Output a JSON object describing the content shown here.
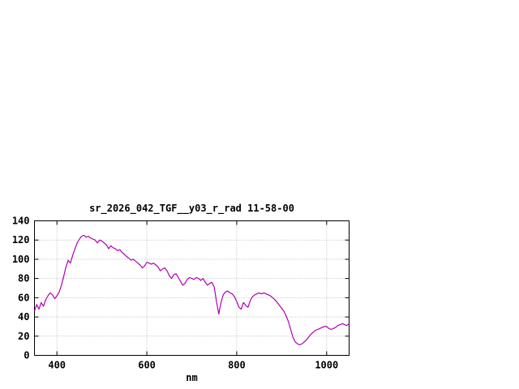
{
  "window": {
    "background": "#ffffff"
  },
  "chart_data": {
    "type": "line",
    "title": "sr_2026_042_TGF__y03_r_rad 11-58-00",
    "xlabel": "nm",
    "ylabel": "",
    "xlim": [
      350,
      1050
    ],
    "ylim": [
      0,
      140
    ],
    "xticks": [
      400,
      600,
      800,
      1000
    ],
    "yticks": [
      0,
      20,
      40,
      60,
      80,
      100,
      120,
      140
    ],
    "grid": true,
    "legend_position": "none",
    "line_color": "#b000b0",
    "axis_color": "#000000",
    "grid_color": "#b4b4b4",
    "series": [
      {
        "name": "sr_2026_042_TGF__y03_r_rad 11-58-00",
        "color": "#b000b0",
        "points": [
          [
            350,
            46
          ],
          [
            355,
            53
          ],
          [
            360,
            48
          ],
          [
            365,
            55
          ],
          [
            370,
            51
          ],
          [
            375,
            58
          ],
          [
            380,
            62
          ],
          [
            385,
            65
          ],
          [
            390,
            63
          ],
          [
            395,
            59
          ],
          [
            400,
            62
          ],
          [
            405,
            66
          ],
          [
            410,
            73
          ],
          [
            415,
            82
          ],
          [
            420,
            92
          ],
          [
            425,
            99
          ],
          [
            430,
            96
          ],
          [
            435,
            104
          ],
          [
            440,
            111
          ],
          [
            445,
            117
          ],
          [
            450,
            121
          ],
          [
            455,
            124
          ],
          [
            460,
            125
          ],
          [
            465,
            123
          ],
          [
            470,
            124
          ],
          [
            475,
            122
          ],
          [
            480,
            121
          ],
          [
            485,
            120
          ],
          [
            490,
            117
          ],
          [
            495,
            120
          ],
          [
            500,
            119
          ],
          [
            505,
            117
          ],
          [
            510,
            115
          ],
          [
            515,
            111
          ],
          [
            520,
            114
          ],
          [
            525,
            112
          ],
          [
            530,
            111
          ],
          [
            535,
            109
          ],
          [
            540,
            110
          ],
          [
            545,
            107
          ],
          [
            550,
            105
          ],
          [
            555,
            103
          ],
          [
            560,
            101
          ],
          [
            565,
            99
          ],
          [
            570,
            100
          ],
          [
            575,
            98
          ],
          [
            580,
            96
          ],
          [
            585,
            94
          ],
          [
            590,
            91
          ],
          [
            595,
            93
          ],
          [
            600,
            97
          ],
          [
            605,
            96
          ],
          [
            610,
            95
          ],
          [
            615,
            96
          ],
          [
            620,
            94
          ],
          [
            625,
            92
          ],
          [
            630,
            88
          ],
          [
            635,
            90
          ],
          [
            640,
            91
          ],
          [
            645,
            88
          ],
          [
            650,
            83
          ],
          [
            655,
            80
          ],
          [
            660,
            84
          ],
          [
            665,
            85
          ],
          [
            670,
            81
          ],
          [
            675,
            77
          ],
          [
            680,
            73
          ],
          [
            685,
            75
          ],
          [
            690,
            79
          ],
          [
            695,
            81
          ],
          [
            700,
            80
          ],
          [
            705,
            79
          ],
          [
            710,
            81
          ],
          [
            715,
            80
          ],
          [
            720,
            78
          ],
          [
            725,
            80
          ],
          [
            730,
            76
          ],
          [
            735,
            73
          ],
          [
            740,
            75
          ],
          [
            745,
            76
          ],
          [
            750,
            71
          ],
          [
            755,
            56
          ],
          [
            760,
            43
          ],
          [
            765,
            55
          ],
          [
            770,
            63
          ],
          [
            775,
            66
          ],
          [
            780,
            67
          ],
          [
            785,
            65
          ],
          [
            790,
            64
          ],
          [
            795,
            61
          ],
          [
            800,
            56
          ],
          [
            805,
            50
          ],
          [
            810,
            48
          ],
          [
            815,
            55
          ],
          [
            820,
            52
          ],
          [
            825,
            50
          ],
          [
            830,
            57
          ],
          [
            835,
            61
          ],
          [
            840,
            63
          ],
          [
            845,
            64
          ],
          [
            850,
            65
          ],
          [
            855,
            64
          ],
          [
            860,
            65
          ],
          [
            865,
            64
          ],
          [
            870,
            63
          ],
          [
            875,
            62
          ],
          [
            880,
            60
          ],
          [
            885,
            58
          ],
          [
            890,
            55
          ],
          [
            895,
            52
          ],
          [
            900,
            49
          ],
          [
            905,
            46
          ],
          [
            910,
            41
          ],
          [
            915,
            35
          ],
          [
            920,
            27
          ],
          [
            925,
            19
          ],
          [
            930,
            14
          ],
          [
            935,
            12
          ],
          [
            940,
            11
          ],
          [
            945,
            12
          ],
          [
            950,
            14
          ],
          [
            955,
            16
          ],
          [
            960,
            19
          ],
          [
            965,
            22
          ],
          [
            970,
            24
          ],
          [
            975,
            26
          ],
          [
            980,
            27
          ],
          [
            985,
            28
          ],
          [
            990,
            29
          ],
          [
            995,
            30
          ],
          [
            1000,
            30
          ],
          [
            1005,
            28
          ],
          [
            1010,
            27
          ],
          [
            1015,
            28
          ],
          [
            1020,
            29
          ],
          [
            1025,
            31
          ],
          [
            1030,
            32
          ],
          [
            1035,
            33
          ],
          [
            1040,
            32
          ],
          [
            1045,
            31
          ],
          [
            1050,
            33
          ]
        ]
      }
    ]
  }
}
